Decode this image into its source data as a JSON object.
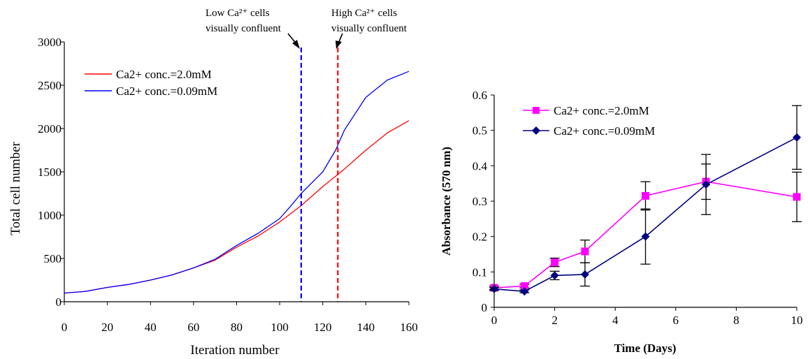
{
  "chart_data": [
    {
      "type": "line",
      "xlabel": "Iteration number",
      "ylabel": "Total cell number",
      "xlim": [
        0,
        160
      ],
      "ylim": [
        0,
        3000
      ],
      "x_ticks": [
        "0",
        "20",
        "40",
        "60",
        "80",
        "100",
        "120",
        "140",
        "160"
      ],
      "y_ticks": [
        "0",
        "500",
        "1000",
        "1500",
        "2000",
        "2500",
        "3000"
      ],
      "legend_position": "top-left",
      "grid": false,
      "series": [
        {
          "name": "Ca2+ conc.=2.0mM",
          "color": "#ff0000",
          "x": [
            0,
            10,
            20,
            30,
            40,
            50,
            60,
            70,
            80,
            90,
            100,
            110,
            120,
            126,
            130,
            140,
            150,
            160
          ],
          "y": [
            100,
            120,
            165,
            200,
            250,
            310,
            390,
            480,
            630,
            760,
            920,
            1110,
            1330,
            1450,
            1530,
            1750,
            1950,
            2090
          ]
        },
        {
          "name": "Ca2+ conc.=0.09mM",
          "color": "#0000ff",
          "x": [
            0,
            10,
            20,
            30,
            40,
            50,
            60,
            70,
            80,
            90,
            100,
            105,
            110,
            120,
            126,
            130,
            140,
            150,
            160
          ],
          "y": [
            100,
            120,
            165,
            200,
            250,
            310,
            390,
            490,
            650,
            790,
            960,
            1100,
            1250,
            1500,
            1750,
            1980,
            2360,
            2560,
            2660
          ]
        }
      ],
      "vlines": [
        {
          "x": 110,
          "color": "#0000ff"
        },
        {
          "x": 127,
          "color": "#ff0000"
        }
      ],
      "annotations": [
        {
          "lines": [
            "Low Ca²⁺ cells",
            "visually confluent"
          ],
          "target_x": 110
        },
        {
          "lines": [
            "High Ca²⁺ cells",
            "visually confluent"
          ],
          "target_x": 127
        }
      ]
    },
    {
      "type": "line",
      "xlabel": "Time (Days)",
      "ylabel": "Absorbance (570 nm)",
      "xlim": [
        0,
        10
      ],
      "ylim": [
        0,
        0.6
      ],
      "x_ticks": [
        "0",
        "2",
        "4",
        "6",
        "8",
        "10"
      ],
      "y_ticks": [
        "0",
        "0.1",
        "0.2",
        "0.3",
        "0.4",
        "0.5",
        "0.6"
      ],
      "legend_position": "top-left",
      "grid": false,
      "series": [
        {
          "name": "Ca2+ conc.=2.0mM",
          "color": "#ff00ff",
          "marker": "square",
          "x": [
            0,
            1,
            2,
            3,
            5,
            7,
            10
          ],
          "y": [
            0.055,
            0.06,
            0.127,
            0.158,
            0.315,
            0.355,
            0.312
          ],
          "err": [
            0.005,
            0.005,
            0.012,
            0.032,
            0.04,
            0.05,
            0.07
          ]
        },
        {
          "name": "Ca2+ conc.=0.09mM",
          "color": "#000080",
          "marker": "diamond",
          "x": [
            0,
            1,
            2,
            3,
            5,
            7,
            10
          ],
          "y": [
            0.052,
            0.045,
            0.09,
            0.093,
            0.2,
            0.347,
            0.48
          ],
          "err": [
            0.004,
            0.004,
            0.012,
            0.033,
            0.078,
            0.085,
            0.09
          ]
        }
      ]
    }
  ]
}
